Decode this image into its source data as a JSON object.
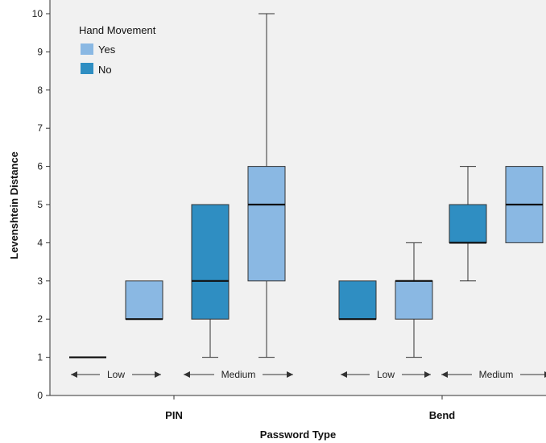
{
  "chart_data": {
    "type": "box",
    "xlabel": "Password Type",
    "ylabel": "Levenshtein Distance",
    "ylim": [
      0,
      10
    ],
    "yticks": [
      0,
      1,
      2,
      3,
      4,
      5,
      6,
      7,
      8,
      9,
      10
    ],
    "grid": false,
    "legend": {
      "title": "Hand Movement",
      "position": "top-left",
      "entries": [
        {
          "name": "Yes",
          "color": "#8ab8e3"
        },
        {
          "name": "No",
          "color": "#2f8ec2"
        }
      ]
    },
    "groups": [
      {
        "label": "PIN",
        "subgroups": [
          "Low",
          "Medium"
        ]
      },
      {
        "label": "Bend",
        "subgroups": [
          "Low",
          "Medium"
        ]
      }
    ],
    "boxes": [
      {
        "group": "PIN",
        "subgroup": "Low",
        "hand_movement": "No",
        "min": 1,
        "q1": 1,
        "median": 1,
        "q3": 1,
        "max": 1
      },
      {
        "group": "PIN",
        "subgroup": "Low",
        "hand_movement": "Yes",
        "min": 2,
        "q1": 2,
        "median": 2,
        "q3": 3,
        "max": 3
      },
      {
        "group": "PIN",
        "subgroup": "Medium",
        "hand_movement": "No",
        "min": 1,
        "q1": 2,
        "median": 3,
        "q3": 5,
        "max": 5
      },
      {
        "group": "PIN",
        "subgroup": "Medium",
        "hand_movement": "Yes",
        "min": 1,
        "q1": 3,
        "median": 5,
        "q3": 6,
        "max": 10
      },
      {
        "group": "Bend",
        "subgroup": "Low",
        "hand_movement": "No",
        "min": 2,
        "q1": 2,
        "median": 2,
        "q3": 3,
        "max": 3
      },
      {
        "group": "Bend",
        "subgroup": "Low",
        "hand_movement": "Yes",
        "min": 1,
        "q1": 2,
        "median": 3,
        "q3": 3,
        "max": 4
      },
      {
        "group": "Bend",
        "subgroup": "Medium",
        "hand_movement": "No",
        "min": 3,
        "q1": 4,
        "median": 4,
        "q3": 5,
        "max": 6
      },
      {
        "group": "Bend",
        "subgroup": "Medium",
        "hand_movement": "Yes",
        "min": 4,
        "q1": 4,
        "median": 5,
        "q3": 6,
        "max": 6
      }
    ]
  }
}
